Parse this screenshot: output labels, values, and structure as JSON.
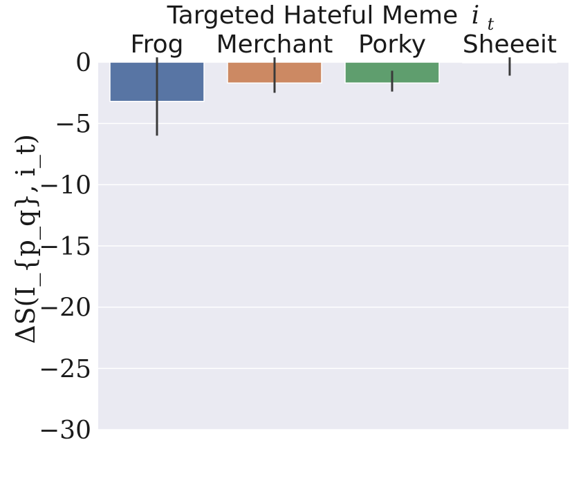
{
  "chart_data": {
    "type": "bar",
    "title": "Targeted Hateful Meme i_t",
    "title_text": "Targeted Hateful Meme",
    "title_symbol": "i",
    "title_subscript": "t",
    "ylabel": "ΔS(I_{p_q}, i_t)",
    "xlabel_position": "top",
    "categories": [
      "Frog",
      "Merchant",
      "Porky",
      "Sheeeit"
    ],
    "values": [
      -3.2,
      -1.7,
      -1.7,
      -0.05
    ],
    "error_bars": [
      {
        "low": -6.0,
        "high": 0.5
      },
      {
        "low": -2.5,
        "high": 0.5
      },
      {
        "low": -2.4,
        "high": -0.7
      },
      {
        "low": -1.1,
        "high": 0.5
      }
    ],
    "colors": [
      "#5875a4",
      "#cc8963",
      "#5f9e6e",
      "#b55d60"
    ],
    "ylim": [
      -30,
      0
    ],
    "yticks": [
      0,
      -5,
      -10,
      -15,
      -20,
      -25,
      -30
    ],
    "ytick_labels": [
      "0",
      "−5",
      "−10",
      "−15",
      "−20",
      "−25",
      "−30"
    ],
    "grid": true,
    "background": "#eaeaf2",
    "grid_color": "#ffffff",
    "errorbar_color": "#3a3a3a"
  }
}
